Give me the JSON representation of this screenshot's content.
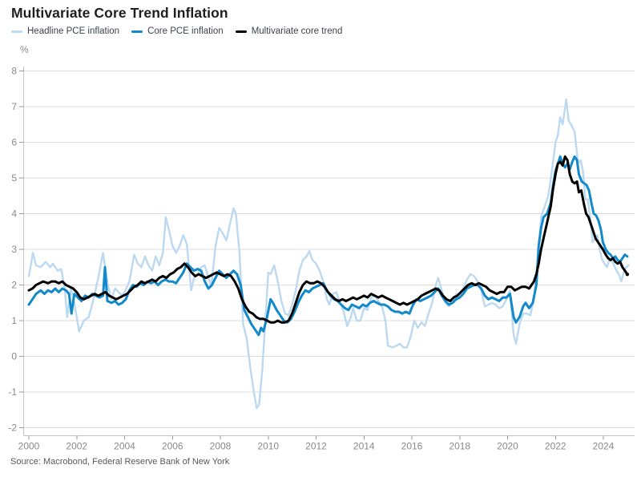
{
  "chart": {
    "title": "Multivariate Core Trend Inflation",
    "unit_label": "%",
    "source": "Source: Macrobond, Federal Reserve Bank of New York"
  },
  "chart_data": {
    "type": "line",
    "title": "Multivariate Core Trend Inflation",
    "xlabel": "",
    "ylabel": "%",
    "grid": "horizontal",
    "legend_position": "top-left",
    "x_axis": {
      "min": 2000,
      "max": 2025.3,
      "ticks": [
        2000,
        2002,
        2004,
        2006,
        2008,
        2010,
        2012,
        2014,
        2016,
        2018,
        2020,
        2022,
        2024
      ]
    },
    "y_axis": {
      "min": -2,
      "max": 8,
      "ticks": [
        8,
        7,
        6,
        5,
        4,
        3,
        2,
        1,
        0,
        -1,
        -2
      ]
    },
    "colors": {
      "grid": "#dcdcdc",
      "spine": "#c4c4c4",
      "tick": "#9a9a9a",
      "axis_text": "#8a8a8a"
    },
    "series": [
      {
        "name": "Headline PCE inflation",
        "color": "#bcd9f1",
        "width": 2.4,
        "points": [
          2000.0,
          2.25,
          2000.17,
          2.9,
          2000.3,
          2.55,
          2000.5,
          2.5,
          2000.7,
          2.65,
          2000.9,
          2.5,
          2001.0,
          2.6,
          2001.2,
          2.4,
          2001.35,
          2.45,
          2001.5,
          1.9,
          2001.6,
          1.1,
          2001.75,
          1.9,
          2001.9,
          1.5,
          2002.1,
          0.7,
          2002.3,
          1.0,
          2002.5,
          1.1,
          2002.7,
          1.6,
          2002.9,
          2.2,
          2003.1,
          2.9,
          2003.3,
          2.0,
          2003.45,
          1.6,
          2003.6,
          1.9,
          2003.75,
          1.8,
          2003.9,
          1.7,
          2004.0,
          1.8,
          2004.2,
          2.1,
          2004.4,
          2.85,
          2004.55,
          2.6,
          2004.7,
          2.5,
          2004.85,
          2.8,
          2005.0,
          2.55,
          2005.15,
          2.4,
          2005.3,
          2.8,
          2005.45,
          2.55,
          2005.6,
          2.9,
          2005.72,
          3.9,
          2005.85,
          3.55,
          2006.0,
          3.1,
          2006.15,
          2.9,
          2006.3,
          3.1,
          2006.45,
          3.4,
          2006.6,
          3.15,
          2006.78,
          1.85,
          2006.9,
          2.2,
          2007.05,
          2.3,
          2007.2,
          2.5,
          2007.35,
          2.55,
          2007.5,
          2.2,
          2007.62,
          1.95,
          2007.8,
          3.1,
          2007.95,
          3.6,
          2008.1,
          3.45,
          2008.25,
          3.25,
          2008.4,
          3.7,
          2008.55,
          4.15,
          2008.65,
          4.0,
          2008.8,
          2.9,
          2008.95,
          0.9,
          2009.1,
          0.5,
          2009.25,
          -0.3,
          2009.4,
          -1.0,
          2009.52,
          -1.45,
          2009.62,
          -1.35,
          2009.75,
          -0.4,
          2009.88,
          1.0,
          2010.0,
          2.35,
          2010.1,
          2.3,
          2010.25,
          2.55,
          2010.4,
          2.1,
          2010.55,
          1.55,
          2010.7,
          1.2,
          2010.85,
          1.15,
          2011.0,
          1.45,
          2011.15,
          1.85,
          2011.3,
          2.4,
          2011.45,
          2.7,
          2011.6,
          2.8,
          2011.72,
          2.95,
          2011.85,
          2.7,
          2012.0,
          2.6,
          2012.15,
          2.4,
          2012.3,
          2.1,
          2012.45,
          1.6,
          2012.55,
          1.45,
          2012.7,
          1.75,
          2012.85,
          1.8,
          2013.0,
          1.5,
          2013.15,
          1.25,
          2013.3,
          0.85,
          2013.45,
          1.1,
          2013.55,
          1.35,
          2013.7,
          1.0,
          2013.85,
          1.0,
          2014.0,
          1.35,
          2014.15,
          1.3,
          2014.3,
          1.65,
          2014.45,
          1.7,
          2014.6,
          1.55,
          2014.75,
          1.4,
          2014.9,
          1.0,
          2015.0,
          0.3,
          2015.2,
          0.25,
          2015.35,
          0.3,
          2015.5,
          0.35,
          2015.65,
          0.25,
          2015.8,
          0.25,
          2015.95,
          0.55,
          2016.1,
          1.0,
          2016.25,
          0.8,
          2016.4,
          0.95,
          2016.55,
          0.85,
          2016.7,
          1.2,
          2016.85,
          1.5,
          2017.0,
          2.0,
          2017.1,
          2.2,
          2017.25,
          1.85,
          2017.4,
          1.5,
          2017.55,
          1.4,
          2017.7,
          1.55,
          2017.85,
          1.75,
          2018.0,
          1.75,
          2018.15,
          1.9,
          2018.3,
          2.15,
          2018.45,
          2.3,
          2018.6,
          2.25,
          2018.75,
          2.1,
          2018.9,
          1.85,
          2019.05,
          1.4,
          2019.2,
          1.45,
          2019.35,
          1.5,
          2019.5,
          1.45,
          2019.65,
          1.35,
          2019.8,
          1.4,
          2019.95,
          1.6,
          2020.1,
          1.85,
          2020.25,
          0.6,
          2020.35,
          0.35,
          2020.5,
          0.9,
          2020.65,
          1.2,
          2020.8,
          1.2,
          2020.95,
          1.15,
          2021.1,
          1.6,
          2021.25,
          2.6,
          2021.4,
          3.9,
          2021.55,
          4.2,
          2021.7,
          4.5,
          2021.85,
          5.2,
          2022.0,
          6.0,
          2022.1,
          6.2,
          2022.2,
          6.7,
          2022.3,
          6.5,
          2022.45,
          7.2,
          2022.55,
          6.6,
          2022.65,
          6.5,
          2022.8,
          6.3,
          2022.95,
          5.4,
          2023.05,
          5.5,
          2023.15,
          5.2,
          2023.25,
          4.4,
          2023.35,
          4.4,
          2023.45,
          3.9,
          2023.55,
          3.2,
          2023.65,
          3.3,
          2023.75,
          3.4,
          2023.85,
          3.0,
          2023.95,
          2.7,
          2024.05,
          2.6,
          2024.15,
          2.5,
          2024.25,
          2.7,
          2024.35,
          2.7,
          2024.45,
          2.55,
          2024.55,
          2.4,
          2024.65,
          2.3,
          2024.75,
          2.1,
          2024.85,
          2.35,
          2024.95,
          2.5,
          2025.05,
          2.55
        ]
      },
      {
        "name": "Core PCE inflation",
        "color": "#1289ca",
        "width": 3,
        "points": [
          2000.0,
          1.45,
          2000.15,
          1.6,
          2000.3,
          1.75,
          2000.5,
          1.85,
          2000.65,
          1.75,
          2000.8,
          1.85,
          2000.95,
          1.8,
          2001.1,
          1.9,
          2001.25,
          1.8,
          2001.4,
          1.9,
          2001.55,
          1.85,
          2001.68,
          1.75,
          2001.78,
          1.2,
          2001.9,
          1.75,
          2002.05,
          1.65,
          2002.2,
          1.55,
          2002.35,
          1.7,
          2002.5,
          1.65,
          2002.65,
          1.75,
          2002.8,
          1.7,
          2002.95,
          1.65,
          2003.1,
          1.7,
          2003.18,
          2.5,
          2003.28,
          1.55,
          2003.45,
          1.5,
          2003.6,
          1.55,
          2003.75,
          1.45,
          2003.9,
          1.5,
          2004.05,
          1.6,
          2004.2,
          1.85,
          2004.35,
          2.0,
          2004.5,
          1.95,
          2004.65,
          2.05,
          2004.8,
          2.0,
          2004.95,
          2.1,
          2005.1,
          2.05,
          2005.25,
          2.1,
          2005.4,
          2.0,
          2005.55,
          2.1,
          2005.7,
          2.15,
          2005.85,
          2.1,
          2006.0,
          2.1,
          2006.15,
          2.05,
          2006.3,
          2.2,
          2006.45,
          2.35,
          2006.6,
          2.6,
          2006.75,
          2.5,
          2006.9,
          2.4,
          2007.05,
          2.45,
          2007.2,
          2.4,
          2007.35,
          2.1,
          2007.5,
          1.9,
          2007.65,
          2.0,
          2007.8,
          2.2,
          2007.95,
          2.4,
          2008.1,
          2.3,
          2008.25,
          2.2,
          2008.4,
          2.3,
          2008.55,
          2.4,
          2008.7,
          2.3,
          2008.85,
          2.0,
          2009.0,
          1.3,
          2009.15,
          1.1,
          2009.3,
          0.9,
          2009.45,
          0.75,
          2009.6,
          0.6,
          2009.7,
          0.8,
          2009.8,
          0.7,
          2009.95,
          1.1,
          2010.1,
          1.6,
          2010.2,
          1.5,
          2010.35,
          1.3,
          2010.5,
          1.15,
          2010.65,
          1.0,
          2010.8,
          0.95,
          2010.95,
          1.05,
          2011.1,
          1.25,
          2011.25,
          1.5,
          2011.4,
          1.7,
          2011.55,
          1.85,
          2011.7,
          1.8,
          2011.85,
          1.9,
          2012.0,
          1.95,
          2012.15,
          2.0,
          2012.3,
          2.05,
          2012.45,
          1.85,
          2012.6,
          1.7,
          2012.75,
          1.6,
          2012.9,
          1.55,
          2013.05,
          1.45,
          2013.2,
          1.35,
          2013.35,
          1.3,
          2013.5,
          1.45,
          2013.65,
          1.4,
          2013.8,
          1.35,
          2013.95,
          1.45,
          2014.1,
          1.4,
          2014.25,
          1.5,
          2014.4,
          1.55,
          2014.55,
          1.5,
          2014.7,
          1.45,
          2014.85,
          1.45,
          2015.0,
          1.4,
          2015.15,
          1.3,
          2015.3,
          1.25,
          2015.45,
          1.25,
          2015.6,
          1.2,
          2015.75,
          1.25,
          2015.9,
          1.2,
          2016.05,
          1.45,
          2016.2,
          1.6,
          2016.35,
          1.55,
          2016.5,
          1.6,
          2016.65,
          1.65,
          2016.8,
          1.7,
          2016.95,
          1.8,
          2017.1,
          1.9,
          2017.25,
          1.7,
          2017.4,
          1.55,
          2017.55,
          1.45,
          2017.7,
          1.5,
          2017.85,
          1.6,
          2018.0,
          1.65,
          2018.15,
          1.75,
          2018.3,
          1.9,
          2018.45,
          1.95,
          2018.6,
          2.0,
          2018.75,
          2.0,
          2018.9,
          1.9,
          2019.05,
          1.7,
          2019.2,
          1.6,
          2019.35,
          1.65,
          2019.5,
          1.6,
          2019.65,
          1.55,
          2019.8,
          1.65,
          2019.95,
          1.65,
          2020.1,
          1.75,
          2020.25,
          1.1,
          2020.35,
          0.95,
          2020.5,
          1.1,
          2020.65,
          1.4,
          2020.75,
          1.5,
          2020.9,
          1.35,
          2021.05,
          1.5,
          2021.2,
          2.0,
          2021.3,
          3.1,
          2021.4,
          3.6,
          2021.5,
          3.9,
          2021.65,
          4.0,
          2021.8,
          4.3,
          2021.9,
          4.8,
          2022.0,
          5.2,
          2022.1,
          5.4,
          2022.2,
          5.6,
          2022.3,
          5.4,
          2022.4,
          5.3,
          2022.5,
          5.4,
          2022.6,
          5.25,
          2022.7,
          5.45,
          2022.8,
          5.6,
          2022.9,
          5.5,
          2022.98,
          5.1,
          2023.1,
          4.9,
          2023.2,
          4.85,
          2023.3,
          4.8,
          2023.4,
          4.65,
          2023.5,
          4.3,
          2023.6,
          4.0,
          2023.7,
          3.95,
          2023.8,
          3.8,
          2023.9,
          3.55,
          2023.98,
          3.2,
          2024.1,
          3.0,
          2024.2,
          2.9,
          2024.3,
          2.85,
          2024.4,
          2.75,
          2024.5,
          2.8,
          2024.6,
          2.7,
          2024.7,
          2.65,
          2024.8,
          2.75,
          2024.9,
          2.85,
          2025.0,
          2.8
        ]
      },
      {
        "name": "Multivariate core trend",
        "color": "#000000",
        "width": 3,
        "end_dot": true,
        "points": [
          2000.0,
          1.85,
          2000.15,
          1.9,
          2000.3,
          2.0,
          2000.45,
          2.05,
          2000.6,
          2.1,
          2000.8,
          2.05,
          2000.95,
          2.1,
          2001.1,
          2.1,
          2001.25,
          2.05,
          2001.4,
          2.1,
          2001.55,
          2.0,
          2001.7,
          1.95,
          2001.85,
          1.9,
          2002.0,
          1.8,
          2002.15,
          1.65,
          2002.3,
          1.6,
          2002.45,
          1.65,
          2002.6,
          1.7,
          2002.75,
          1.75,
          2002.9,
          1.7,
          2003.05,
          1.75,
          2003.2,
          1.8,
          2003.35,
          1.7,
          2003.5,
          1.65,
          2003.65,
          1.6,
          2003.8,
          1.65,
          2003.95,
          1.7,
          2004.1,
          1.75,
          2004.25,
          1.85,
          2004.4,
          1.95,
          2004.55,
          2.0,
          2004.7,
          2.1,
          2004.85,
          2.05,
          2005.0,
          2.1,
          2005.15,
          2.15,
          2005.3,
          2.1,
          2005.45,
          2.2,
          2005.6,
          2.25,
          2005.75,
          2.2,
          2005.9,
          2.3,
          2006.05,
          2.35,
          2006.2,
          2.45,
          2006.35,
          2.5,
          2006.5,
          2.6,
          2006.65,
          2.5,
          2006.8,
          2.35,
          2006.95,
          2.25,
          2007.1,
          2.3,
          2007.25,
          2.25,
          2007.4,
          2.2,
          2007.55,
          2.25,
          2007.7,
          2.3,
          2007.85,
          2.35,
          2008.0,
          2.3,
          2008.15,
          2.25,
          2008.3,
          2.3,
          2008.45,
          2.25,
          2008.6,
          2.1,
          2008.75,
          1.9,
          2008.9,
          1.6,
          2009.05,
          1.4,
          2009.2,
          1.25,
          2009.35,
          1.2,
          2009.5,
          1.1,
          2009.65,
          1.05,
          2009.8,
          1.05,
          2009.95,
          1.0,
          2010.1,
          0.95,
          2010.25,
          0.95,
          2010.4,
          1.0,
          2010.55,
          0.95,
          2010.7,
          0.95,
          2010.85,
          1.0,
          2011.0,
          1.2,
          2011.15,
          1.5,
          2011.3,
          1.8,
          2011.45,
          2.0,
          2011.6,
          2.1,
          2011.75,
          2.05,
          2011.9,
          2.05,
          2012.05,
          2.1,
          2012.2,
          2.05,
          2012.35,
          1.95,
          2012.5,
          1.8,
          2012.65,
          1.7,
          2012.8,
          1.6,
          2012.95,
          1.55,
          2013.1,
          1.6,
          2013.25,
          1.55,
          2013.4,
          1.6,
          2013.55,
          1.65,
          2013.7,
          1.6,
          2013.85,
          1.65,
          2014.0,
          1.7,
          2014.15,
          1.65,
          2014.3,
          1.75,
          2014.45,
          1.7,
          2014.6,
          1.65,
          2014.75,
          1.7,
          2014.9,
          1.65,
          2015.05,
          1.6,
          2015.2,
          1.55,
          2015.35,
          1.5,
          2015.5,
          1.45,
          2015.65,
          1.5,
          2015.8,
          1.45,
          2015.95,
          1.5,
          2016.1,
          1.55,
          2016.25,
          1.6,
          2016.4,
          1.7,
          2016.55,
          1.75,
          2016.7,
          1.8,
          2016.85,
          1.85,
          2017.0,
          1.9,
          2017.15,
          1.85,
          2017.3,
          1.7,
          2017.45,
          1.6,
          2017.6,
          1.55,
          2017.75,
          1.65,
          2017.9,
          1.7,
          2018.05,
          1.8,
          2018.2,
          1.9,
          2018.35,
          2.0,
          2018.5,
          2.05,
          2018.65,
          2.0,
          2018.8,
          2.05,
          2018.95,
          2.0,
          2019.1,
          1.95,
          2019.25,
          1.85,
          2019.4,
          1.8,
          2019.55,
          1.75,
          2019.7,
          1.8,
          2019.85,
          1.8,
          2020.0,
          1.95,
          2020.15,
          1.95,
          2020.3,
          1.85,
          2020.45,
          1.9,
          2020.6,
          1.95,
          2020.75,
          1.95,
          2020.9,
          1.9,
          2021.0,
          2.0,
          2021.1,
          2.1,
          2021.2,
          2.3,
          2021.3,
          2.6,
          2021.4,
          3.0,
          2021.5,
          3.3,
          2021.6,
          3.6,
          2021.7,
          3.9,
          2021.8,
          4.2,
          2021.9,
          4.7,
          2022.0,
          5.1,
          2022.1,
          5.4,
          2022.2,
          5.45,
          2022.3,
          5.35,
          2022.4,
          5.6,
          2022.5,
          5.5,
          2022.6,
          5.1,
          2022.7,
          4.9,
          2022.8,
          4.85,
          2022.9,
          4.9,
          2022.98,
          4.6,
          2023.08,
          4.65,
          2023.18,
          4.3,
          2023.28,
          4.0,
          2023.38,
          3.9,
          2023.48,
          3.7,
          2023.58,
          3.5,
          2023.68,
          3.3,
          2023.78,
          3.2,
          2023.88,
          3.1,
          2023.98,
          3.0,
          2024.1,
          2.85,
          2024.2,
          2.75,
          2024.3,
          2.7,
          2024.4,
          2.75,
          2024.5,
          2.65,
          2024.6,
          2.6,
          2024.7,
          2.65,
          2024.8,
          2.5,
          2024.9,
          2.4,
          2025.0,
          2.3
        ]
      }
    ]
  }
}
